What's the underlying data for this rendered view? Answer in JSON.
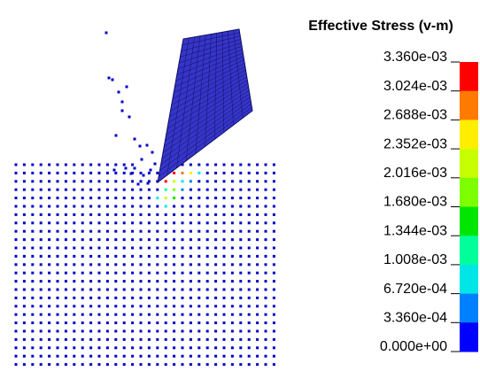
{
  "legend": {
    "title": "Effective Stress (v-m)",
    "labels": [
      "3.360e-03",
      "3.024e-03",
      "2.688e-03",
      "2.352e-03",
      "2.016e-03",
      "1.680e-03",
      "1.344e-03",
      "1.008e-03",
      "6.720e-04",
      "3.360e-04",
      "0.000e+00"
    ],
    "colors": [
      "#ff0000",
      "#ff7a00",
      "#ffee00",
      "#c8ff00",
      "#7dff00",
      "#00e600",
      "#00ff9a",
      "#00e6e6",
      "#0080ff",
      "#0000ff"
    ]
  }
}
